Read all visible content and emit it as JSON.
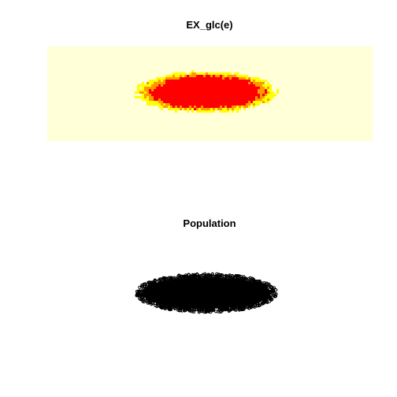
{
  "chart_data": [
    {
      "type": "heatmap",
      "title": "EX_glc(e)",
      "xlabel": "",
      "ylabel": "",
      "grid": false,
      "legend": "none",
      "description_values": {
        "levels": [
          "background",
          "low",
          "medium",
          "high"
        ]
      },
      "colors": {
        "background": "#ffffd8",
        "low": "#ffff00",
        "medium": "#ff9900",
        "high": "#ff0000"
      }
    },
    {
      "type": "scatter",
      "title": "Population",
      "xlabel": "",
      "ylabel": "",
      "grid": false,
      "legend": "none",
      "colors": {
        "points": "#000000"
      }
    }
  ]
}
